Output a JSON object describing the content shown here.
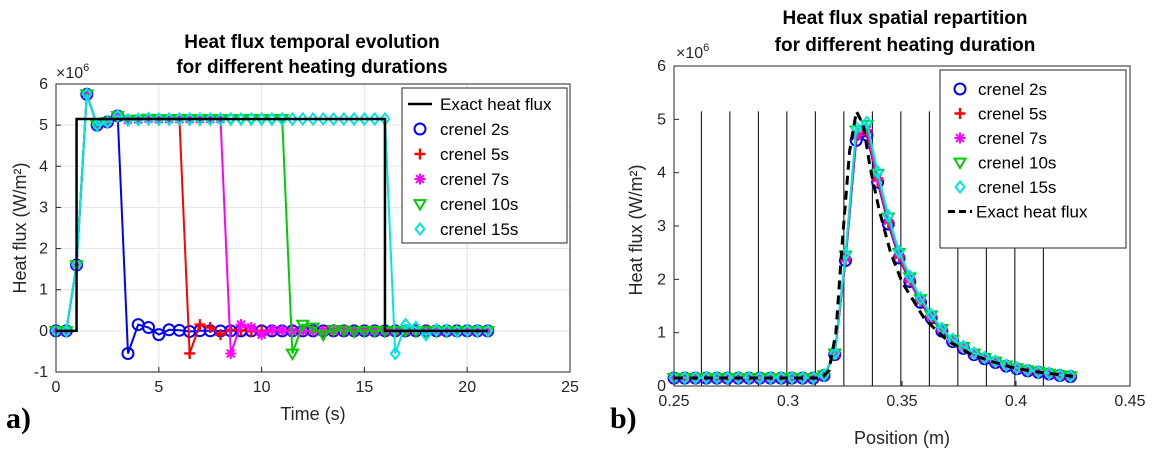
{
  "chart_data": [
    {
      "type": "line",
      "panel_label": "a)",
      "title_lines": [
        "Heat flux temporal evolution",
        "for different heating durations"
      ],
      "xlabel": "Time (s)",
      "ylabel": "Heat flux (W/m²)",
      "y_exponent": "×10^6",
      "xlim": [
        0,
        25
      ],
      "ylim": [
        -1,
        6
      ],
      "xticks": [
        0,
        5,
        10,
        15,
        20,
        25
      ],
      "yticks": [
        -1,
        0,
        1,
        2,
        3,
        4,
        5,
        6
      ],
      "grid": true,
      "legend_position": "top-right",
      "exact": {
        "name": "Exact heat flux",
        "color": "#000000",
        "x": [
          0,
          1,
          1,
          16,
          16,
          21
        ],
        "y": [
          0,
          0,
          5.15,
          5.15,
          0,
          0
        ]
      },
      "series": [
        {
          "name": "crenel 2s",
          "color": "#0000ff",
          "marker": "circle",
          "end": 3
        },
        {
          "name": "crenel 5s",
          "color": "#ff0000",
          "marker": "plus",
          "end": 6
        },
        {
          "name": "crenel 7s",
          "color": "#ff00ff",
          "marker": "star",
          "end": 8
        },
        {
          "name": "crenel 10s",
          "color": "#00cc00",
          "marker": "triangle-down",
          "end": 11
        },
        {
          "name": "crenel 15s",
          "color": "#00e5e5",
          "marker": "diamond",
          "end": 16
        }
      ],
      "series_values": {
        "x_start": 0,
        "x_end": 21,
        "step": 0.5,
        "start": 1,
        "plateau": 5.15,
        "overshoot_peak": 5.75,
        "undershoot_peak": -0.55
      }
    },
    {
      "type": "line",
      "panel_label": "b)",
      "title_lines": [
        "Heat flux spatial repartition",
        "for different heating duration"
      ],
      "xlabel": "Position (m)",
      "ylabel": "Heat flux (W/m²)",
      "y_exponent": "×10^6",
      "xlim": [
        0.25,
        0.45
      ],
      "ylim": [
        0,
        6
      ],
      "xticks": [
        0.25,
        0.3,
        0.35,
        0.4,
        0.45
      ],
      "yticks": [
        0,
        1,
        2,
        3,
        4,
        5,
        6
      ],
      "grid": false,
      "legend_position": "top-right",
      "vertical_lines_x": [
        0.262,
        0.2745,
        0.287,
        0.2995,
        0.312,
        0.3245,
        0.337,
        0.3495,
        0.362,
        0.3745,
        0.387,
        0.3995,
        0.412
      ],
      "exact": {
        "name": "Exact heat flux",
        "color": "#000000",
        "x": [
          0.25,
          0.315,
          0.318,
          0.321,
          0.324,
          0.327,
          0.33,
          0.333,
          0.336,
          0.34,
          0.345,
          0.35,
          0.36,
          0.37,
          0.38,
          0.39,
          0.4,
          0.41,
          0.425
        ],
        "y": [
          0.15,
          0.15,
          0.3,
          1.0,
          2.8,
          4.4,
          5.15,
          4.9,
          4.1,
          3.3,
          2.5,
          1.95,
          1.25,
          0.85,
          0.6,
          0.45,
          0.33,
          0.26,
          0.18
        ]
      },
      "series": [
        {
          "name": "crenel 2s",
          "color": "#0000ff",
          "marker": "circle",
          "scale": 0.98
        },
        {
          "name": "crenel 5s",
          "color": "#ff0000",
          "marker": "plus",
          "scale": 0.99
        },
        {
          "name": "crenel 7s",
          "color": "#ff00ff",
          "marker": "star",
          "scale": 1.0
        },
        {
          "name": "crenel 10s",
          "color": "#00cc00",
          "marker": "triangle-down",
          "scale": 1.02
        },
        {
          "name": "crenel 15s",
          "color": "#00e5e5",
          "marker": "diamond",
          "scale": 1.03
        }
      ],
      "series_x": [
        0.25,
        0.2547,
        0.2594,
        0.2641,
        0.2688,
        0.2735,
        0.2782,
        0.2829,
        0.2876,
        0.2923,
        0.297,
        0.3017,
        0.3064,
        0.3111,
        0.3158,
        0.3205,
        0.3252,
        0.3299,
        0.3346,
        0.3393,
        0.344,
        0.3487,
        0.3534,
        0.3581,
        0.3628,
        0.3675,
        0.3722,
        0.3769,
        0.3816,
        0.3863,
        0.391,
        0.3957,
        0.4004,
        0.4051,
        0.4098,
        0.4145,
        0.4192,
        0.4239
      ],
      "series_y": [
        0.15,
        0.15,
        0.15,
        0.15,
        0.15,
        0.15,
        0.15,
        0.15,
        0.15,
        0.15,
        0.15,
        0.15,
        0.15,
        0.15,
        0.2,
        0.6,
        2.4,
        4.7,
        4.8,
        3.9,
        3.1,
        2.45,
        2.0,
        1.6,
        1.3,
        1.05,
        0.85,
        0.72,
        0.6,
        0.52,
        0.45,
        0.38,
        0.33,
        0.29,
        0.26,
        0.23,
        0.2,
        0.18
      ]
    }
  ]
}
